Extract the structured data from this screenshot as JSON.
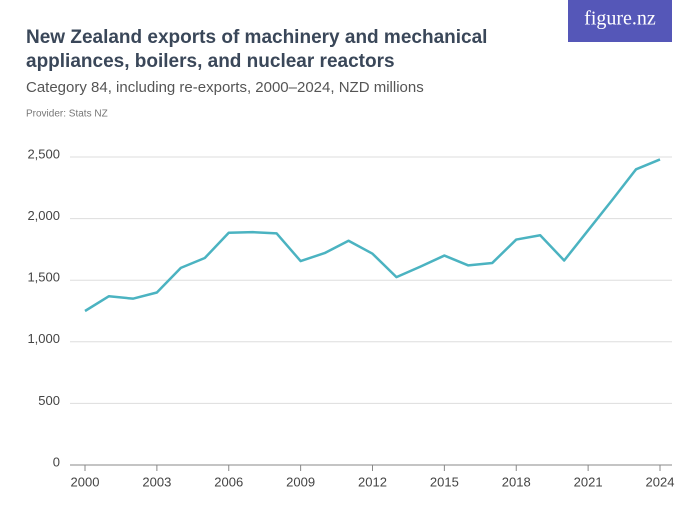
{
  "chart_data": {
    "type": "line",
    "title": "New Zealand exports of machinery and mechanical appliances, boilers, and nuclear reactors",
    "subtitle": "Category 84, including re-exports, 2000–2024, NZD millions",
    "source": "Provider: Stats NZ",
    "brand": "figure.nz",
    "x": [
      2000,
      2001,
      2002,
      2003,
      2004,
      2005,
      2006,
      2007,
      2008,
      2009,
      2010,
      2011,
      2012,
      2013,
      2014,
      2015,
      2016,
      2017,
      2018,
      2019,
      2020,
      2021,
      2022,
      2023,
      2024
    ],
    "series": [
      {
        "color": "#4bb3c1",
        "values": [
          1250,
          1370,
          1350,
          1400,
          1600,
          1680,
          1885,
          1890,
          1880,
          1655,
          1720,
          1820,
          1715,
          1525,
          1610,
          1700,
          1620,
          1640,
          1830,
          1865,
          1660,
          1905,
          2150,
          2400,
          2480
        ]
      }
    ],
    "xlim": [
      2000,
      2024
    ],
    "xticks": [
      2000,
      2003,
      2006,
      2009,
      2012,
      2015,
      2018,
      2021,
      2024
    ],
    "ylim": [
      0,
      2500
    ],
    "yticks": [
      0,
      500,
      {
        "value": 1000,
        "label": "1,000"
      },
      {
        "value": 1500,
        "label": "1,500"
      },
      {
        "value": 2000,
        "label": "2,000"
      },
      {
        "value": 2500,
        "label": "2,500"
      }
    ],
    "grid": true
  }
}
